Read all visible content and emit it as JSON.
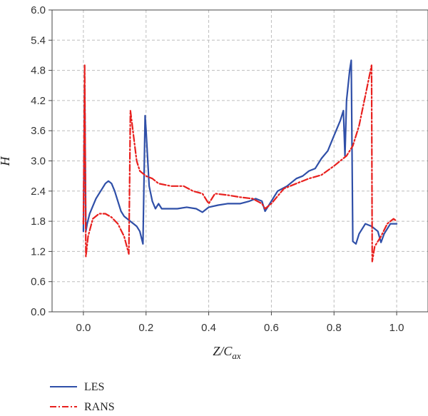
{
  "chart_data": {
    "type": "line",
    "title": "",
    "xlabel": "Z/C",
    "xlabel_sub": "ax",
    "ylabel": "H",
    "xlim": [
      -0.1,
      1.1
    ],
    "ylim": [
      0.0,
      6.0
    ],
    "xticks": [
      0.0,
      0.2,
      0.4,
      0.6,
      0.8,
      1.0
    ],
    "xtick_labels": [
      "0.0",
      "0.2",
      "0.4",
      "0.6",
      "0.8",
      "1.0"
    ],
    "yticks": [
      0.0,
      0.6,
      1.2,
      1.8,
      2.4,
      3.0,
      3.6,
      4.2,
      4.8,
      5.4,
      6.0
    ],
    "ytick_labels": [
      "0.0",
      "0.6",
      "1.2",
      "1.8",
      "2.4",
      "3.0",
      "3.6",
      "4.2",
      "4.8",
      "5.4",
      "6.0"
    ],
    "grid": true,
    "legend_position": "bottom-left-outside",
    "series": [
      {
        "name": "LES",
        "color": "#2f4fa8",
        "dash": "solid",
        "points": [
          [
            0.0,
            1.6
          ],
          [
            0.004,
            4.5
          ],
          [
            0.008,
            1.6
          ],
          [
            0.012,
            1.75
          ],
          [
            0.02,
            1.95
          ],
          [
            0.03,
            2.1
          ],
          [
            0.04,
            2.25
          ],
          [
            0.05,
            2.35
          ],
          [
            0.06,
            2.45
          ],
          [
            0.07,
            2.55
          ],
          [
            0.08,
            2.6
          ],
          [
            0.09,
            2.55
          ],
          [
            0.1,
            2.4
          ],
          [
            0.11,
            2.2
          ],
          [
            0.12,
            2.0
          ],
          [
            0.13,
            1.9
          ],
          [
            0.14,
            1.85
          ],
          [
            0.15,
            1.8
          ],
          [
            0.16,
            1.75
          ],
          [
            0.17,
            1.7
          ],
          [
            0.18,
            1.6
          ],
          [
            0.19,
            1.35
          ],
          [
            0.197,
            3.9
          ],
          [
            0.2,
            3.6
          ],
          [
            0.21,
            2.5
          ],
          [
            0.22,
            2.2
          ],
          [
            0.23,
            2.05
          ],
          [
            0.24,
            2.15
          ],
          [
            0.25,
            2.05
          ],
          [
            0.27,
            2.05
          ],
          [
            0.3,
            2.05
          ],
          [
            0.33,
            2.08
          ],
          [
            0.36,
            2.05
          ],
          [
            0.38,
            1.98
          ],
          [
            0.4,
            2.08
          ],
          [
            0.43,
            2.12
          ],
          [
            0.46,
            2.15
          ],
          [
            0.5,
            2.15
          ],
          [
            0.53,
            2.2
          ],
          [
            0.55,
            2.25
          ],
          [
            0.57,
            2.2
          ],
          [
            0.58,
            2.0
          ],
          [
            0.6,
            2.2
          ],
          [
            0.62,
            2.4
          ],
          [
            0.65,
            2.5
          ],
          [
            0.68,
            2.65
          ],
          [
            0.7,
            2.7
          ],
          [
            0.72,
            2.8
          ],
          [
            0.74,
            2.85
          ],
          [
            0.76,
            3.05
          ],
          [
            0.78,
            3.2
          ],
          [
            0.8,
            3.5
          ],
          [
            0.82,
            3.8
          ],
          [
            0.83,
            4.0
          ],
          [
            0.835,
            3.1
          ],
          [
            0.84,
            4.2
          ],
          [
            0.85,
            4.8
          ],
          [
            0.855,
            5.0
          ],
          [
            0.86,
            1.4
          ],
          [
            0.87,
            1.35
          ],
          [
            0.88,
            1.55
          ],
          [
            0.9,
            1.75
          ],
          [
            0.92,
            1.7
          ],
          [
            0.94,
            1.6
          ],
          [
            0.95,
            1.38
          ],
          [
            0.96,
            1.55
          ],
          [
            0.98,
            1.75
          ],
          [
            1.0,
            1.75
          ]
        ]
      },
      {
        "name": "RANS",
        "color": "#e8201e",
        "dash": "dashdot",
        "points": [
          [
            0.0,
            1.75
          ],
          [
            0.004,
            4.9
          ],
          [
            0.008,
            1.1
          ],
          [
            0.015,
            1.5
          ],
          [
            0.03,
            1.85
          ],
          [
            0.05,
            1.95
          ],
          [
            0.07,
            1.95
          ],
          [
            0.09,
            1.88
          ],
          [
            0.11,
            1.75
          ],
          [
            0.13,
            1.5
          ],
          [
            0.145,
            1.15
          ],
          [
            0.15,
            4.0
          ],
          [
            0.16,
            3.5
          ],
          [
            0.17,
            3.0
          ],
          [
            0.18,
            2.8
          ],
          [
            0.2,
            2.7
          ],
          [
            0.22,
            2.65
          ],
          [
            0.24,
            2.55
          ],
          [
            0.28,
            2.5
          ],
          [
            0.32,
            2.5
          ],
          [
            0.35,
            2.4
          ],
          [
            0.38,
            2.35
          ],
          [
            0.4,
            2.15
          ],
          [
            0.42,
            2.35
          ],
          [
            0.46,
            2.32
          ],
          [
            0.5,
            2.28
          ],
          [
            0.54,
            2.25
          ],
          [
            0.57,
            2.15
          ],
          [
            0.58,
            2.05
          ],
          [
            0.6,
            2.15
          ],
          [
            0.64,
            2.45
          ],
          [
            0.68,
            2.55
          ],
          [
            0.72,
            2.65
          ],
          [
            0.76,
            2.72
          ],
          [
            0.8,
            2.9
          ],
          [
            0.84,
            3.1
          ],
          [
            0.86,
            3.3
          ],
          [
            0.88,
            3.7
          ],
          [
            0.9,
            4.3
          ],
          [
            0.92,
            4.9
          ],
          [
            0.922,
            1.0
          ],
          [
            0.93,
            1.3
          ],
          [
            0.95,
            1.5
          ],
          [
            0.97,
            1.75
          ],
          [
            0.99,
            1.85
          ],
          [
            1.0,
            1.8
          ]
        ]
      }
    ]
  }
}
